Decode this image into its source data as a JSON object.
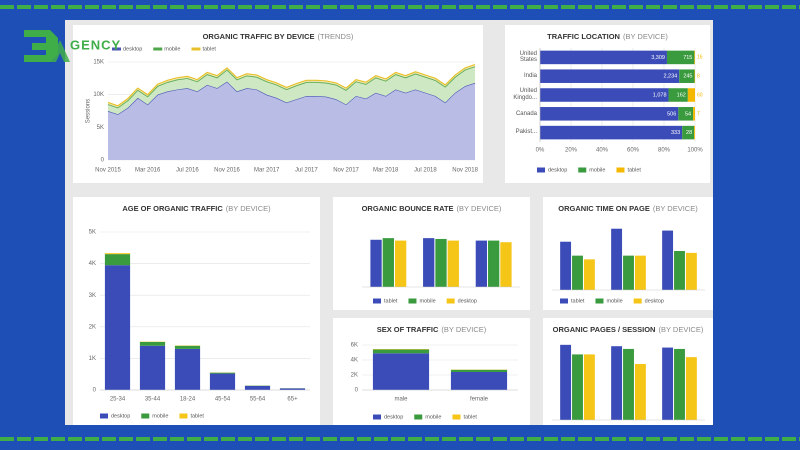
{
  "logo": {
    "text": "GENCY"
  },
  "chart_data": [
    {
      "type": "area",
      "title": "ORGANIC TRAFFIC BY DEVICE",
      "subtitle": "(TRENDS)",
      "y_label": "Sessions",
      "categories": [
        "Nov 2015",
        null,
        null,
        null,
        "Mar 2016",
        null,
        null,
        null,
        "Jul 2016",
        null,
        null,
        null,
        "Nov 2016",
        null,
        null,
        null,
        "Mar 2017",
        null,
        null,
        null,
        "Jul 2017",
        null,
        null,
        null,
        "Nov 2017",
        null,
        null,
        null,
        "Mar 2018",
        null,
        null,
        null,
        "Jul 2018",
        null,
        null,
        null,
        "Nov 2018",
        null
      ],
      "stacked": true,
      "grid": true,
      "ylim": [
        0,
        15000
      ],
      "yticks": [
        0,
        {
          "value": 5000,
          "label": "5K"
        },
        {
          "value": 10000,
          "label": "10K"
        },
        {
          "value": 15000,
          "label": "15K"
        }
      ],
      "series": [
        {
          "name": "desktop",
          "color": "#4b56b5",
          "values": [
            7500,
            7000,
            8000,
            9500,
            8500,
            10000,
            10500,
            10800,
            11000,
            10500,
            11500,
            11000,
            12000,
            10500,
            11000,
            10800,
            10000,
            9500,
            8800,
            9300,
            9800,
            9800,
            9700,
            9300,
            8500,
            9800,
            9400,
            10300,
            9800,
            10800,
            10300,
            10800,
            10300,
            9800,
            8800,
            10300,
            11300,
            11800
          ]
        },
        {
          "name": "mobile",
          "color": "#4ea64a",
          "values": [
            1000,
            1000,
            1100,
            1200,
            1200,
            1300,
            1400,
            1500,
            1500,
            1500,
            1600,
            1600,
            1800,
            1800,
            1900,
            1900,
            2000,
            2000,
            2000,
            2100,
            2100,
            2100,
            2100,
            2200,
            2200,
            2200,
            2200,
            2300,
            2300,
            2300,
            2300,
            2400,
            2400,
            2400,
            2400,
            2400,
            2500,
            2500
          ]
        },
        {
          "name": "tablet",
          "color": "#e8c12a",
          "values": [
            300,
            300,
            300,
            300,
            300,
            300,
            300,
            300,
            300,
            300,
            300,
            300,
            300,
            300,
            300,
            300,
            300,
            300,
            300,
            300,
            300,
            300,
            300,
            300,
            300,
            300,
            300,
            300,
            300,
            300,
            300,
            300,
            300,
            300,
            300,
            300,
            300,
            300
          ]
        }
      ]
    },
    {
      "type": "bar",
      "orientation": "horizontal",
      "stacked": true,
      "normalize": true,
      "grid": true,
      "title": "TRAFFIC LOCATION",
      "subtitle": "(BY DEVICE)",
      "categories": [
        "United States",
        "India",
        "United Kingdo...",
        "Canada",
        "Pakist..."
      ],
      "xlim": [
        0,
        100
      ],
      "xticks": [
        {
          "value": 0,
          "label": "0%"
        },
        {
          "value": 20,
          "label": "20%"
        },
        {
          "value": 40,
          "label": "40%"
        },
        {
          "value": 60,
          "label": "60%"
        },
        {
          "value": 80,
          "label": "80%"
        },
        {
          "value": 100,
          "label": "100%"
        }
      ],
      "series": [
        {
          "name": "desktop",
          "color": "#3b4cb8",
          "values": [
            3309,
            2234,
            1078,
            506,
            333
          ],
          "value_labels": [
            "3,309",
            "2,234",
            "1,078",
            "506",
            "333"
          ]
        },
        {
          "name": "mobile",
          "color": "#3a9a3e",
          "values": [
            715,
            245,
            162,
            54,
            28
          ],
          "value_labels": [
            "715",
            "245",
            "162",
            "54",
            "28"
          ]
        },
        {
          "name": "tablet",
          "color": "#f5b800",
          "values": [
            16,
            8,
            60,
            7,
            2
          ],
          "value_labels": [
            "16",
            "8",
            "60",
            "7",
            null
          ]
        }
      ]
    },
    {
      "type": "bar",
      "stacked": true,
      "grid": true,
      "title": "AGE OF ORGANIC TRAFFIC",
      "subtitle": "(BY DEVICE)",
      "categories": [
        "25-34",
        "35-44",
        "18-24",
        "45-54",
        "55-64",
        "65+"
      ],
      "ylim": [
        0,
        5000
      ],
      "yticks": [
        0,
        {
          "value": 1000,
          "label": "1K"
        },
        {
          "value": 2000,
          "label": "2K"
        },
        {
          "value": 3000,
          "label": "3K"
        },
        {
          "value": 4000,
          "label": "4K"
        },
        {
          "value": 5000,
          "label": "5K"
        }
      ],
      "series": [
        {
          "name": "desktop",
          "color": "#3b4cb8",
          "values": [
            3950,
            1400,
            1300,
            520,
            130,
            50
          ]
        },
        {
          "name": "mobile",
          "color": "#3a9a3e",
          "values": [
            350,
            120,
            100,
            30,
            10,
            5
          ]
        },
        {
          "name": "tablet",
          "color": "#f5c518",
          "values": [
            30,
            10,
            10,
            5,
            2,
            1
          ]
        }
      ]
    },
    {
      "type": "bar",
      "title": "ORGANIC BOUNCE RATE",
      "subtitle": "(BY DEVICE)",
      "categories": [
        null,
        null,
        null
      ],
      "ylim": [
        0,
        70
      ],
      "series": [
        {
          "name": "tablet",
          "color": "#3b4cb8",
          "values": [
            58,
            60,
            57
          ]
        },
        {
          "name": "mobile",
          "color": "#3a9a3e",
          "values": [
            60,
            59,
            57
          ]
        },
        {
          "name": "desktop",
          "color": "#f5c518",
          "values": [
            57,
            57,
            55
          ]
        }
      ]
    },
    {
      "type": "bar",
      "title": "ORGANIC TIME ON PAGE",
      "subtitle": "(BY DEVICE)",
      "categories": [
        null,
        null,
        null
      ],
      "ylim": [
        0,
        70
      ],
      "series": [
        {
          "name": "tablet",
          "color": "#3b4cb8",
          "values": [
            52,
            66,
            64
          ]
        },
        {
          "name": "mobile",
          "color": "#3a9a3e",
          "values": [
            37,
            37,
            42
          ]
        },
        {
          "name": "desktop",
          "color": "#f5c518",
          "values": [
            33,
            37,
            40
          ]
        }
      ]
    },
    {
      "type": "bar",
      "stacked": true,
      "grid": true,
      "title": "SEX OF TRAFFIC",
      "subtitle": "(BY DEVICE)",
      "categories": [
        "male",
        "female"
      ],
      "ylim": [
        0,
        6000
      ],
      "yticks": [
        0,
        {
          "value": 2000,
          "label": "2K"
        },
        {
          "value": 4000,
          "label": "4K"
        },
        {
          "value": 6000,
          "label": "6K"
        }
      ],
      "series": [
        {
          "name": "desktop",
          "color": "#3b4cb8",
          "values": [
            4900,
            2400
          ]
        },
        {
          "name": "mobile",
          "color": "#3a9a3e",
          "values": [
            500,
            300
          ]
        },
        {
          "name": "tablet",
          "color": "#f5c518",
          "values": [
            50,
            30
          ]
        }
      ]
    },
    {
      "type": "bar",
      "title": "ORGANIC PAGES / SESSION",
      "subtitle": "(BY DEVICE)",
      "categories": [
        null,
        null,
        null
      ],
      "ylim": [
        0,
        6
      ],
      "series": [
        {
          "color": "#3b4cb8",
          "values": [
            5.5,
            5.4,
            5.3
          ]
        },
        {
          "color": "#3a9a3e",
          "values": [
            4.8,
            5.2,
            5.2
          ]
        },
        {
          "color": "#f5c518",
          "values": [
            4.8,
            4.1,
            4.6
          ]
        }
      ]
    }
  ]
}
